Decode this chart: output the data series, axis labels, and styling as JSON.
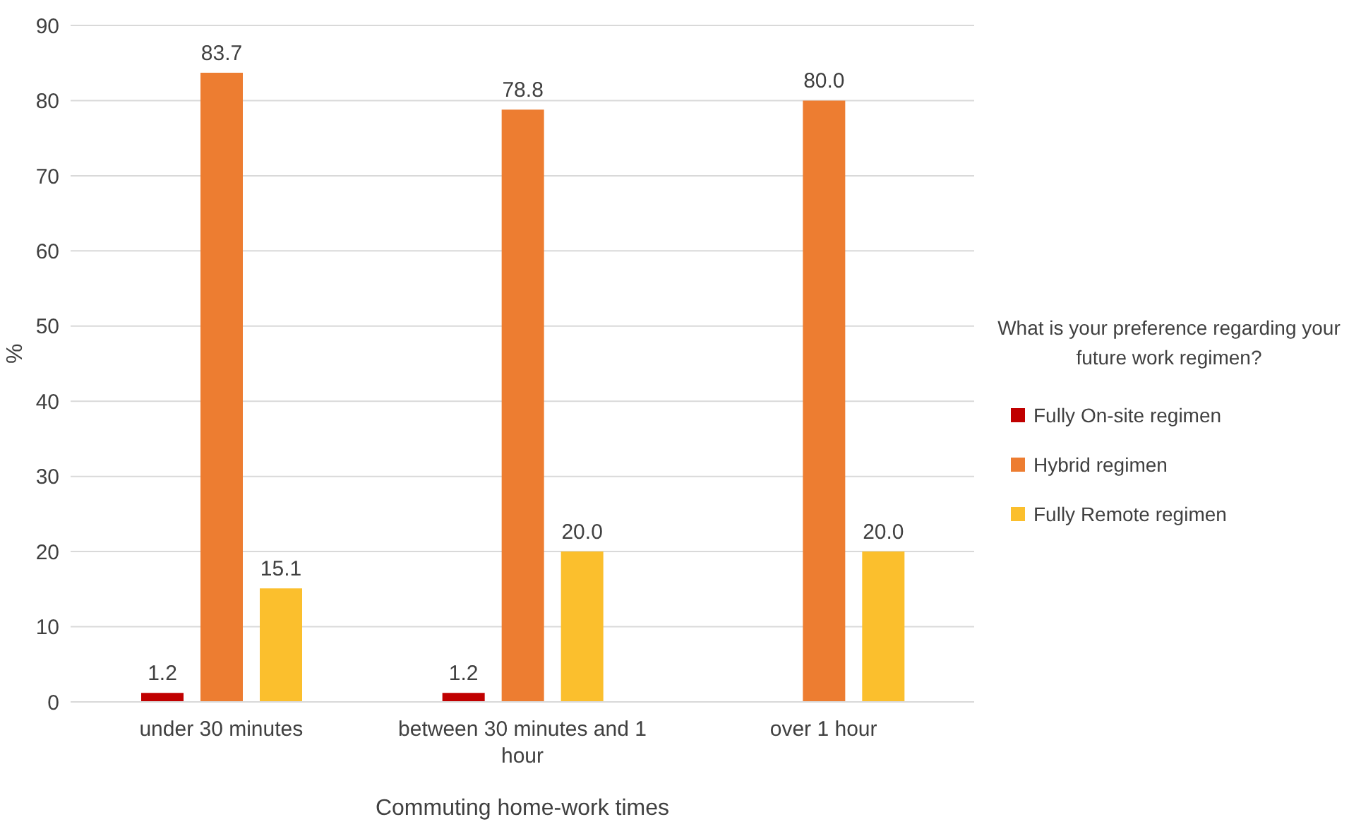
{
  "chart_data": {
    "type": "bar",
    "xlabel": "Commuting home-work times",
    "ylabel": "%",
    "legend_title": "What is your preference regarding your future work regimen?",
    "categories": [
      "under 30 minutes",
      "between 30 minutes and 1 hour",
      "over 1 hour"
    ],
    "series": [
      {
        "name": "Fully On-site regimen",
        "color": "#c00000",
        "values": [
          1.2,
          1.2,
          null
        ],
        "value_labels": [
          "1.2",
          "1.2",
          null
        ]
      },
      {
        "name": "Hybrid regimen",
        "color": "#ed7d31",
        "values": [
          83.7,
          78.8,
          80.0
        ],
        "value_labels": [
          "83.7",
          "78.8",
          "80.0"
        ]
      },
      {
        "name": "Fully Remote regimen",
        "color": "#fbbf2d",
        "values": [
          15.1,
          20.0,
          20.0
        ],
        "value_labels": [
          "15.1",
          "20.0",
          "20.0"
        ]
      }
    ],
    "ylim": [
      0,
      90
    ],
    "yticks": [
      0,
      10,
      20,
      30,
      40,
      50,
      60,
      70,
      80,
      90
    ],
    "grid": "y",
    "legend": "right"
  }
}
